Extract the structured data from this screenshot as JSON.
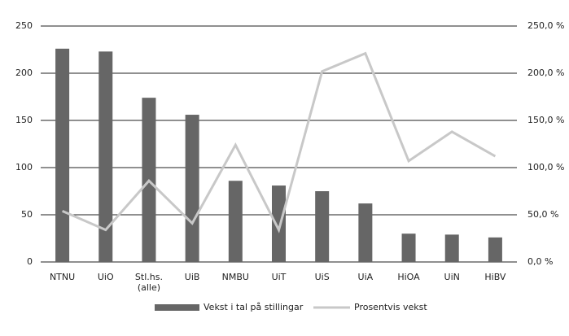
{
  "chart_data": {
    "type": "bar-line",
    "categories": [
      "NTNU",
      "UiO",
      "Stl.hs. (alle)",
      "UiB",
      "NMBU",
      "UiT",
      "UiS",
      "UiA",
      "HiOA",
      "UiN",
      "HiBV"
    ],
    "series": [
      {
        "name": "Vekst i tal på stillingar",
        "type": "bar",
        "color": "#666666",
        "values": [
          226,
          223,
          174,
          156,
          86,
          81,
          75,
          62,
          30,
          29,
          26
        ]
      },
      {
        "name": "Prosentvis vekst",
        "type": "line",
        "axis": "y2",
        "color": "#c8c8c8",
        "values": [
          54,
          34,
          86,
          41,
          124,
          34,
          202,
          221,
          107,
          138,
          112
        ]
      }
    ],
    "ylim": [
      0,
      250
    ],
    "yticks": [
      0,
      50,
      100,
      150,
      200,
      250
    ],
    "y2lim": [
      0,
      250
    ],
    "y2ticks": [
      {
        "value": 0,
        "label": "0,0 %"
      },
      {
        "value": 50,
        "label": "50,0 %"
      },
      {
        "value": 100,
        "label": "100,0 %"
      },
      {
        "value": 150,
        "label": "150,0 %"
      },
      {
        "value": 200,
        "label": "200,0 %"
      },
      {
        "value": 250,
        "label": "250,0 %"
      }
    ],
    "grid": true,
    "legend": "bottom"
  }
}
